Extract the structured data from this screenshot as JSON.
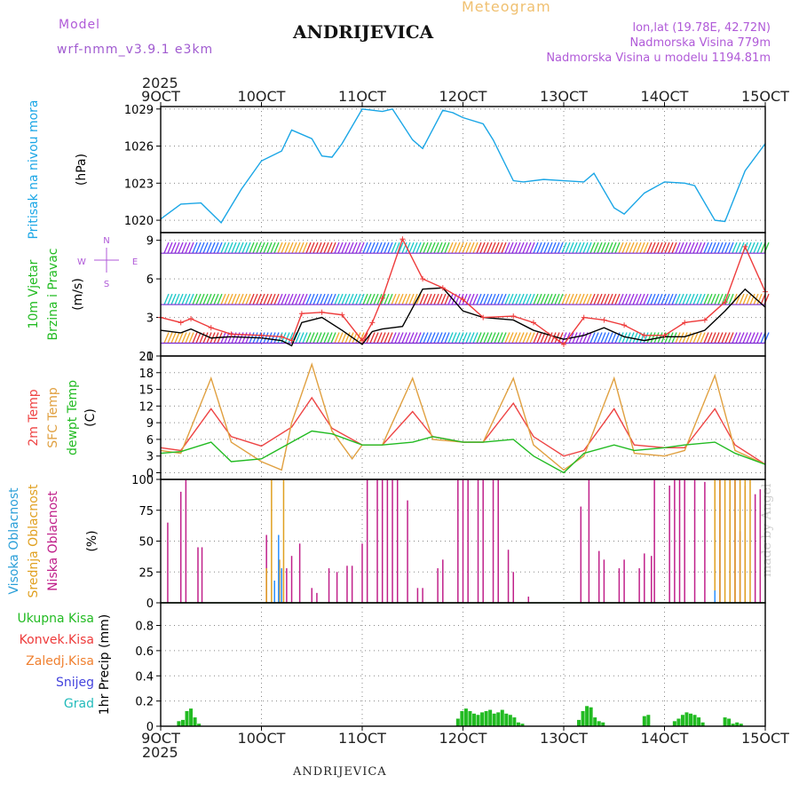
{
  "header": {
    "model_label": "Model",
    "model_name": "wrf-nmm_v3.9.1 e3km",
    "station": "ANDRIJEVICA",
    "meteogram": "Meteogram",
    "lonlat": "lon,lat (19.78E, 42.72N)",
    "altitude": "Nadmorska Visina 779m",
    "altitude_model": "Nadmorska Visina u modelu 1194.81m"
  },
  "footer": {
    "station": "ANDRIJEVICA",
    "made_by": "made by Angel",
    "year": "2025"
  },
  "colors": {
    "pressure": "#1aa6e6",
    "wind_speed": "#000000",
    "gust": "#ee3b3b",
    "temp2m": "#ee4444",
    "sfc_temp": "#e0a040",
    "dewpt": "#22bb22",
    "high_cloud": "#2b8fff",
    "mid_cloud": "#e0a020",
    "low_cloud": "#c0208a",
    "total_precip": "#22bb22",
    "grid": "#888888"
  },
  "chart_data": [
    {
      "type": "line",
      "name": "pressure",
      "ylabel_lines": [
        "Pritisak na nivou mora",
        "(hPa)"
      ],
      "xlim": [
        9,
        15
      ],
      "ylim": [
        1019,
        1029.2
      ],
      "yticks": [
        1020,
        1023,
        1026,
        1029
      ],
      "series": [
        {
          "name": "Pritisak",
          "color_key": "pressure",
          "x": [
            9.0,
            9.2,
            9.4,
            9.6,
            9.8,
            10.0,
            10.2,
            10.3,
            10.5,
            10.6,
            10.7,
            10.8,
            11.0,
            11.2,
            11.3,
            11.5,
            11.6,
            11.8,
            11.9,
            12.0,
            12.2,
            12.3,
            12.5,
            12.6,
            12.8,
            13.0,
            13.2,
            13.3,
            13.5,
            13.6,
            13.8,
            14.0,
            14.2,
            14.3,
            14.5,
            14.6,
            14.8,
            15.0
          ],
          "values": [
            1020.1,
            1021.3,
            1021.4,
            1019.8,
            1022.5,
            1024.8,
            1025.6,
            1027.3,
            1026.6,
            1025.2,
            1025.1,
            1026.2,
            1029.0,
            1028.8,
            1029.0,
            1026.5,
            1025.8,
            1028.9,
            1028.7,
            1028.3,
            1027.8,
            1026.5,
            1023.2,
            1023.1,
            1023.3,
            1023.2,
            1023.1,
            1023.8,
            1021.0,
            1020.5,
            1022.2,
            1023.1,
            1023.0,
            1022.8,
            1020.0,
            1019.9,
            1024.0,
            1026.2
          ]
        }
      ]
    },
    {
      "type": "line",
      "name": "wind",
      "ylabel_lines": [
        "10m Vjetar",
        "Brzina i Pravac",
        "(m/s)"
      ],
      "compass": [
        "N",
        "W",
        "E",
        "S"
      ],
      "xlim": [
        9,
        15
      ],
      "ylim": [
        0,
        9.6
      ],
      "yticks": [
        0,
        3,
        6,
        9
      ],
      "series": [
        {
          "name": "Brzina",
          "color_key": "wind_speed",
          "x": [
            9.0,
            9.2,
            9.3,
            9.5,
            9.7,
            10.0,
            10.2,
            10.3,
            10.4,
            10.6,
            10.8,
            11.0,
            11.1,
            11.2,
            11.4,
            11.6,
            11.8,
            12.0,
            12.2,
            12.5,
            12.7,
            13.0,
            13.2,
            13.4,
            13.6,
            13.8,
            14.0,
            14.2,
            14.4,
            14.6,
            14.8,
            15.0
          ],
          "values": [
            2.0,
            1.8,
            2.1,
            1.4,
            1.5,
            1.4,
            1.2,
            0.8,
            2.6,
            3.0,
            2.0,
            0.9,
            1.9,
            2.1,
            2.3,
            5.2,
            5.3,
            3.5,
            3.0,
            2.8,
            2.0,
            1.3,
            1.6,
            2.2,
            1.5,
            1.2,
            1.5,
            1.5,
            2.0,
            3.5,
            5.2,
            3.8
          ]
        },
        {
          "name": "Udari",
          "color_key": "gust",
          "x": [
            9.0,
            9.2,
            9.3,
            9.5,
            9.7,
            10.0,
            10.2,
            10.3,
            10.4,
            10.6,
            10.8,
            11.0,
            11.1,
            11.2,
            11.4,
            11.6,
            11.8,
            12.0,
            12.2,
            12.5,
            12.7,
            13.0,
            13.2,
            13.4,
            13.6,
            13.8,
            14.0,
            14.2,
            14.4,
            14.6,
            14.8,
            15.0
          ],
          "values": [
            3.0,
            2.6,
            2.9,
            2.2,
            1.7,
            1.6,
            1.5,
            1.2,
            3.3,
            3.4,
            3.2,
            1.2,
            2.6,
            4.5,
            9.1,
            6.0,
            5.3,
            4.4,
            3.0,
            3.1,
            2.6,
            0.9,
            3.0,
            2.8,
            2.4,
            1.6,
            1.6,
            2.6,
            2.8,
            4.2,
            8.5,
            5.0
          ]
        }
      ],
      "barb_levels_m_s": [
        8,
        4,
        1
      ]
    },
    {
      "type": "line",
      "name": "temperature",
      "ylabel_lines": [
        "2m Temp",
        "SFC Temp",
        "dewpt Temp",
        "(C)"
      ],
      "xlim": [
        9,
        15
      ],
      "ylim": [
        -1.2,
        21
      ],
      "yticks": [
        0,
        3,
        6,
        9,
        12,
        15,
        18,
        21
      ],
      "series": [
        {
          "name": "2m Temp",
          "color_key": "temp2m",
          "x": [
            9.0,
            9.2,
            9.5,
            9.7,
            10.0,
            10.3,
            10.5,
            10.7,
            11.0,
            11.2,
            11.5,
            11.7,
            12.0,
            12.2,
            12.5,
            12.7,
            13.0,
            13.2,
            13.5,
            13.7,
            14.0,
            14.2,
            14.5,
            14.7,
            15.0
          ],
          "values": [
            4.5,
            4.0,
            11.5,
            6.5,
            4.8,
            8.2,
            13.5,
            8.0,
            5.0,
            5.0,
            11.0,
            6.5,
            5.5,
            5.5,
            12.5,
            6.5,
            3.0,
            4.0,
            11.5,
            5.0,
            4.5,
            4.5,
            11.5,
            5.0,
            1.5
          ]
        },
        {
          "name": "SFC Temp",
          "color_key": "sfc_temp",
          "x": [
            9.0,
            9.2,
            9.5,
            9.7,
            10.0,
            10.2,
            10.3,
            10.5,
            10.7,
            10.9,
            11.0,
            11.2,
            11.5,
            11.7,
            12.0,
            12.2,
            12.5,
            12.7,
            13.0,
            13.2,
            13.5,
            13.7,
            14.0,
            14.2,
            14.5,
            14.7,
            15.0
          ],
          "values": [
            4.0,
            3.5,
            17.0,
            5.5,
            2.0,
            0.5,
            9.0,
            19.5,
            7.5,
            2.5,
            5.0,
            5.0,
            17.0,
            6.0,
            5.5,
            5.5,
            17.0,
            5.0,
            0.5,
            3.0,
            17.0,
            3.5,
            3.0,
            4.0,
            17.5,
            4.0,
            1.5
          ]
        },
        {
          "name": "dewpt Temp",
          "color_key": "dewpt",
          "x": [
            9.0,
            9.2,
            9.5,
            9.7,
            10.0,
            10.3,
            10.5,
            10.7,
            11.0,
            11.2,
            11.5,
            11.7,
            12.0,
            12.2,
            12.5,
            12.7,
            13.0,
            13.2,
            13.5,
            13.7,
            14.0,
            14.2,
            14.5,
            14.7,
            15.0
          ],
          "values": [
            3.5,
            3.8,
            5.5,
            2.0,
            2.5,
            5.5,
            7.5,
            7.0,
            5.0,
            5.0,
            5.5,
            6.5,
            5.5,
            5.5,
            6.0,
            3.0,
            0.0,
            3.5,
            5.0,
            4.0,
            4.5,
            5.0,
            5.5,
            3.5,
            1.5
          ]
        }
      ]
    },
    {
      "type": "bar",
      "name": "clouds",
      "ylabel_lines": [
        "Visoka Oblacnost",
        "Srednja Oblacnost",
        "Niska Oblacnost",
        "(%)"
      ],
      "xlim": [
        9,
        15
      ],
      "ylim": [
        0,
        100
      ],
      "yticks": [
        0,
        25,
        50,
        75,
        100
      ],
      "series": [
        {
          "name": "Niska Oblacnost",
          "color_key": "low_cloud",
          "x": [
            9.07,
            9.2,
            9.25,
            9.37,
            9.41,
            10.05,
            10.25,
            10.3,
            10.38,
            10.5,
            10.55,
            10.67,
            10.75,
            10.85,
            10.9,
            11.0,
            11.05,
            11.15,
            11.2,
            11.25,
            11.3,
            11.35,
            11.45,
            11.55,
            11.6,
            11.75,
            11.8,
            11.95,
            12.0,
            12.05,
            12.15,
            12.2,
            12.3,
            12.35,
            12.45,
            12.5,
            12.65,
            13.17,
            13.25,
            13.35,
            13.4,
            13.55,
            13.6,
            13.75,
            13.8,
            13.87,
            13.9,
            14.05,
            14.1,
            14.15,
            14.2,
            14.3,
            14.4,
            14.55,
            14.65,
            14.7,
            14.75,
            14.8,
            14.9,
            14.95
          ],
          "values": [
            65,
            90,
            100,
            45,
            45,
            55,
            28,
            38,
            48,
            12,
            8,
            28,
            25,
            30,
            30,
            48,
            100,
            100,
            100,
            100,
            100,
            100,
            83,
            12,
            12,
            28,
            35,
            100,
            100,
            100,
            100,
            100,
            100,
            100,
            43,
            25,
            5,
            78,
            100,
            42,
            35,
            28,
            35,
            28,
            40,
            38,
            100,
            95,
            100,
            100,
            100,
            100,
            98,
            100,
            100,
            100,
            58,
            95,
            88,
            92
          ]
        },
        {
          "name": "Srednja Oblacnost",
          "color_key": "mid_cloud",
          "x": [
            10.05,
            10.1,
            10.18,
            10.22,
            14.5,
            14.55,
            14.6,
            14.65,
            14.7,
            14.75,
            14.8,
            14.85
          ],
          "values": [
            28,
            100,
            35,
            100,
            100,
            100,
            100,
            100,
            100,
            100,
            100,
            100
          ]
        },
        {
          "name": "Visoka Oblacnost",
          "color_key": "high_cloud",
          "x": [
            10.13,
            10.17,
            10.2,
            14.5
          ],
          "values": [
            18,
            55,
            28,
            10
          ]
        }
      ]
    },
    {
      "type": "bar",
      "name": "precipitation",
      "ylabel_lines": [
        "1hr Precip (mm)"
      ],
      "legend": [
        "Ukupna Kisa",
        "Konvek.Kisa",
        "Zaledj.Kisa",
        "Snijeg",
        "Grad"
      ],
      "legend_colors": [
        "#22bb22",
        "#ee3b3b",
        "#f08030",
        "#4444dd",
        "#22bbbb"
      ],
      "xlim": [
        9,
        15
      ],
      "ylim": [
        0,
        0.98
      ],
      "yticks": [
        0,
        0.2,
        0.4,
        0.6,
        0.8
      ],
      "series": [
        {
          "name": "Ukupna Kisa",
          "color_key": "total_precip",
          "x": [
            9.18,
            9.22,
            9.26,
            9.3,
            9.34,
            9.38,
            11.95,
            11.99,
            12.03,
            12.07,
            12.11,
            12.15,
            12.19,
            12.23,
            12.27,
            12.31,
            12.35,
            12.39,
            12.43,
            12.47,
            12.51,
            12.55,
            12.59,
            13.15,
            13.19,
            13.23,
            13.27,
            13.31,
            13.35,
            13.39,
            13.8,
            13.84,
            14.1,
            14.14,
            14.18,
            14.22,
            14.26,
            14.3,
            14.34,
            14.38,
            14.6,
            14.64,
            14.68,
            14.72,
            14.76
          ],
          "values": [
            0.04,
            0.05,
            0.12,
            0.14,
            0.07,
            0.02,
            0.06,
            0.12,
            0.14,
            0.12,
            0.1,
            0.09,
            0.11,
            0.12,
            0.13,
            0.1,
            0.11,
            0.13,
            0.1,
            0.09,
            0.07,
            0.03,
            0.02,
            0.05,
            0.12,
            0.16,
            0.15,
            0.07,
            0.04,
            0.03,
            0.08,
            0.09,
            0.04,
            0.06,
            0.09,
            0.11,
            0.1,
            0.09,
            0.07,
            0.03,
            0.07,
            0.06,
            0.02,
            0.03,
            0.02
          ]
        }
      ]
    }
  ],
  "x_axis": {
    "ticks": [
      9,
      10,
      11,
      12,
      13,
      14,
      15
    ],
    "labels": [
      "9OCT",
      "10OCT",
      "11OCT",
      "12OCT",
      "13OCT",
      "14OCT",
      "15OCT"
    ]
  }
}
